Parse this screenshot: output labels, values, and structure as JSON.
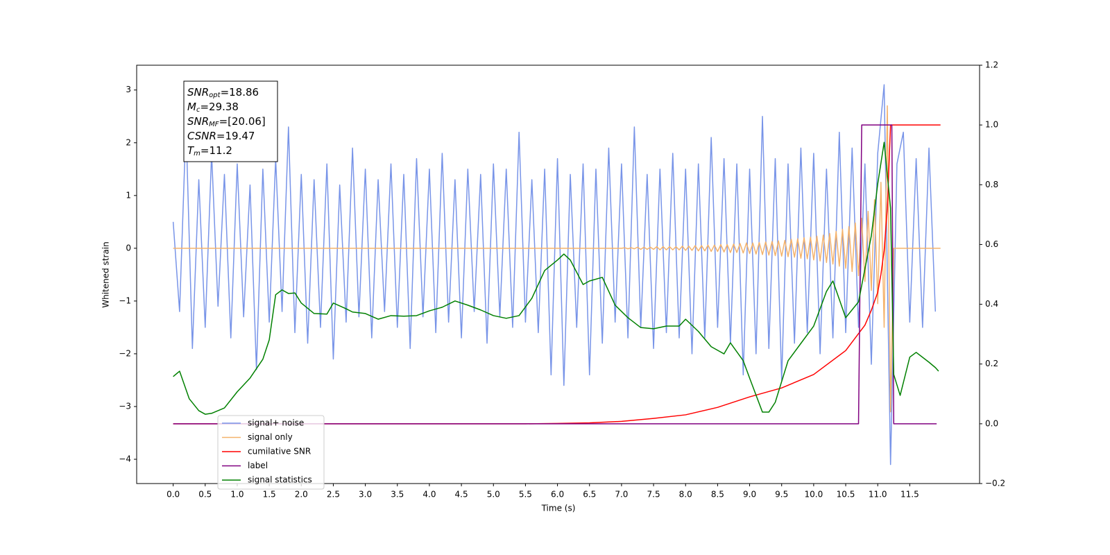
{
  "chart_data": {
    "type": "line",
    "xlabel": "Time (s)",
    "ylabel": "Whitened strain",
    "xlim": [
      -0.57,
      12.59
    ],
    "ylim": [
      -4.46,
      3.47
    ],
    "y2lim": [
      -0.2,
      1.2
    ],
    "xticks": [
      {
        "value": 0,
        "label": "0.0"
      },
      0.5,
      {
        "value": 1,
        "label": "1.0"
      },
      1.5,
      {
        "value": 2,
        "label": "2.0"
      },
      2.5,
      {
        "value": 3,
        "label": "3.0"
      },
      3.5,
      {
        "value": 4,
        "label": "4.0"
      },
      4.5,
      {
        "value": 5,
        "label": "5.0"
      },
      5.5,
      {
        "value": 6,
        "label": "6.0"
      },
      6.5,
      {
        "value": 7,
        "label": "7.0"
      },
      7.5,
      {
        "value": 8,
        "label": "8.0"
      },
      8.5,
      {
        "value": 9,
        "label": "9.0"
      },
      9.5,
      {
        "value": 10,
        "label": "10.0"
      },
      10.5,
      {
        "value": 11,
        "label": "11.0"
      },
      11.5
    ],
    "yticks": [
      {
        "value": -4,
        "label": "−4"
      },
      {
        "value": -3,
        "label": "−3"
      },
      {
        "value": -2,
        "label": "−2"
      },
      {
        "value": -1,
        "label": "−1"
      },
      0,
      1,
      2,
      3
    ],
    "y2ticks": [
      {
        "value": -0.2,
        "label": "−0.2"
      },
      {
        "value": 0,
        "label": "0.0"
      },
      0.2,
      0.4,
      0.6,
      0.8,
      {
        "value": 1,
        "label": "1.0"
      },
      1.2
    ],
    "annotations": [
      {
        "symbol": "SNR",
        "subscript": "opt",
        "text": "=18.86"
      },
      {
        "symbol": "M",
        "subscript": "c",
        "text": "=29.38"
      },
      {
        "symbol": "SNR",
        "subscript": "MF",
        "text": "=[20.06]"
      },
      {
        "symbol": "CSNR",
        "text": "=19.47"
      },
      {
        "symbol": "T",
        "subscript": "m",
        "text": "=11.2"
      }
    ],
    "series": [
      {
        "name": "signal+ noise",
        "color": "#7894e8",
        "x": [
          0,
          0.1,
          0.2,
          0.3,
          0.4,
          0.5,
          0.6,
          0.7,
          0.8,
          0.9,
          1,
          1.1,
          1.2,
          1.3,
          1.4,
          1.5,
          1.6,
          1.7,
          1.8,
          1.9,
          2,
          2.1,
          2.2,
          2.3,
          2.4,
          2.5,
          2.6,
          2.7,
          2.8,
          2.9,
          3,
          3.1,
          3.2,
          3.3,
          3.4,
          3.5,
          3.6,
          3.7,
          3.8,
          3.9,
          4,
          4.1,
          4.2,
          4.3,
          4.4,
          4.5,
          4.6,
          4.7,
          4.8,
          4.9,
          5,
          5.1,
          5.2,
          5.3,
          5.4,
          5.5,
          5.6,
          5.7,
          5.8,
          5.9,
          6,
          6.1,
          6.2,
          6.3,
          6.4,
          6.5,
          6.6,
          6.7,
          6.8,
          6.9,
          7,
          7.1,
          7.2,
          7.3,
          7.4,
          7.5,
          7.6,
          7.7,
          7.8,
          7.9,
          8,
          8.1,
          8.2,
          8.3,
          8.4,
          8.5,
          8.6,
          8.7,
          8.8,
          8.9,
          9,
          9.1,
          9.2,
          9.3,
          9.4,
          9.5,
          9.6,
          9.7,
          9.8,
          9.9,
          10,
          10.1,
          10.2,
          10.3,
          10.4,
          10.5,
          10.6,
          10.7,
          10.8,
          10.9,
          11,
          11.1,
          11.2,
          11.3,
          11.4,
          11.5,
          11.6,
          11.7,
          11.8,
          11.9
        ],
        "values": [
          0.5,
          -1.2,
          2.35,
          -1.9,
          1.3,
          -1.5,
          1.8,
          -1.1,
          1.4,
          -1.7,
          1.6,
          -1.3,
          1.2,
          -2.3,
          1.5,
          -1.4,
          1.7,
          -1.2,
          2.3,
          -1.6,
          1.4,
          -1.8,
          1.3,
          -1.5,
          1.6,
          -2.1,
          1.2,
          -1.4,
          1.9,
          -1.3,
          1.5,
          -1.7,
          1.3,
          -1.2,
          1.6,
          -1.5,
          1.4,
          -1.9,
          1.7,
          -1.3,
          1.5,
          -1.6,
          1.8,
          -1.4,
          1.3,
          -1.7,
          1.5,
          -1.2,
          1.4,
          -1.8,
          1.6,
          -1.3,
          1.5,
          -1.5,
          2.2,
          -1.4,
          1.3,
          -1.6,
          1.5,
          -2.4,
          1.7,
          -2.6,
          1.4,
          -1.5,
          1.6,
          -2.4,
          1.5,
          -1.8,
          1.9,
          -1.4,
          1.6,
          -1.7,
          2.3,
          -1.5,
          1.4,
          -1.9,
          1.5,
          -1.6,
          1.8,
          -1.7,
          1.5,
          -2.0,
          1.6,
          -1.7,
          2.1,
          -1.5,
          1.7,
          -1.8,
          1.6,
          -2.4,
          1.5,
          -2.0,
          2.5,
          -1.9,
          1.7,
          -2.5,
          1.6,
          -1.8,
          1.9,
          -1.6,
          1.8,
          -2.0,
          1.5,
          -1.7,
          2.2,
          -1.6,
          1.9,
          -1.5,
          1.6,
          -2.2,
          1.8,
          3.1,
          -4.1,
          1.6,
          2.2,
          -1.4,
          1.7,
          -1.5,
          1.9,
          -1.2
        ]
      },
      {
        "name": "signal only",
        "color": "#f4b26b",
        "x": [
          0,
          7,
          7.05,
          7.1,
          7.15,
          7.2,
          7.25,
          7.3,
          7.35,
          7.4,
          7.45,
          7.5,
          7.55,
          7.6,
          7.65,
          7.7,
          7.75,
          7.8,
          7.85,
          7.9,
          7.95,
          8,
          8.05,
          8.1,
          8.15,
          8.2,
          8.25,
          8.3,
          8.35,
          8.4,
          8.45,
          8.5,
          8.55,
          8.6,
          8.65,
          8.7,
          8.75,
          8.8,
          8.85,
          8.9,
          8.95,
          9,
          9.05,
          9.1,
          9.15,
          9.2,
          9.25,
          9.3,
          9.35,
          9.4,
          9.45,
          9.5,
          9.55,
          9.6,
          9.65,
          9.7,
          9.75,
          9.8,
          9.85,
          9.9,
          9.95,
          10,
          10.05,
          10.1,
          10.15,
          10.2,
          10.25,
          10.3,
          10.35,
          10.4,
          10.45,
          10.5,
          10.55,
          10.6,
          10.65,
          10.7,
          10.75,
          10.8,
          10.85,
          10.9,
          10.95,
          11,
          11.05,
          11.1,
          11.15,
          11.2,
          11.25,
          11.98
        ],
        "values": [
          0,
          0,
          0.01,
          -0.01,
          0.01,
          -0.01,
          0.02,
          -0.02,
          0.02,
          -0.02,
          0.02,
          -0.02,
          0.03,
          -0.03,
          0.03,
          -0.03,
          0.03,
          -0.03,
          0.03,
          -0.03,
          0.04,
          -0.04,
          0.04,
          -0.04,
          0.05,
          -0.05,
          0.05,
          -0.05,
          0.06,
          -0.06,
          0.06,
          -0.06,
          0.07,
          -0.07,
          0.07,
          -0.08,
          0.08,
          -0.08,
          0.09,
          -0.09,
          0.1,
          -0.1,
          0.1,
          -0.11,
          0.11,
          -0.12,
          0.12,
          -0.13,
          0.13,
          -0.14,
          0.14,
          -0.15,
          0.15,
          -0.16,
          0.17,
          -0.17,
          0.18,
          -0.19,
          0.2,
          -0.2,
          0.21,
          -0.22,
          0.23,
          -0.24,
          0.25,
          -0.27,
          0.28,
          -0.3,
          0.32,
          -0.34,
          0.36,
          -0.38,
          0.41,
          -0.44,
          0.48,
          -0.52,
          0.57,
          -0.63,
          0.7,
          -0.8,
          0.92,
          -1.05,
          1.25,
          -1.5,
          2.7,
          -3.1,
          0,
          0
        ]
      },
      {
        "name": "cumilative SNR",
        "color": "#ff0000",
        "axis": "y2",
        "x": [
          0,
          5.5,
          6,
          6.5,
          7,
          7.5,
          8,
          8.5,
          9,
          9.5,
          10,
          10.5,
          10.8,
          10.9,
          11,
          11.05,
          11.1,
          11.15,
          11.2,
          11.98
        ],
        "values": [
          0,
          0,
          0.001,
          0.003,
          0.008,
          0.018,
          0.03,
          0.055,
          0.09,
          0.12,
          0.165,
          0.245,
          0.33,
          0.38,
          0.44,
          0.5,
          0.58,
          0.72,
          1,
          1
        ]
      },
      {
        "name": "label",
        "color": "#800080",
        "axis": "y2",
        "x": [
          0,
          10.7,
          10.75,
          11.22,
          11.25,
          11.92
        ],
        "values": [
          0,
          0,
          1,
          1,
          0,
          0
        ]
      },
      {
        "name": "signal statistics",
        "color": "#008000",
        "axis": "y2",
        "x": [
          0,
          0.1,
          0.25,
          0.4,
          0.5,
          0.6,
          0.8,
          1,
          1.2,
          1.4,
          1.5,
          1.6,
          1.7,
          1.8,
          1.9,
          2,
          2.2,
          2.4,
          2.5,
          2.7,
          2.8,
          3,
          3.2,
          3.4,
          3.6,
          3.8,
          4,
          4.2,
          4.4,
          4.6,
          4.8,
          5,
          5.2,
          5.4,
          5.6,
          5.8,
          6,
          6.1,
          6.2,
          6.4,
          6.5,
          6.7,
          6.9,
          7.1,
          7.3,
          7.5,
          7.7,
          7.9,
          8,
          8.2,
          8.4,
          8.6,
          8.7,
          8.9,
          9,
          9.2,
          9.3,
          9.4,
          9.6,
          9.8,
          10,
          10.2,
          10.3,
          10.5,
          10.7,
          10.9,
          11,
          11.1,
          11.2,
          11.25,
          11.35,
          11.5,
          11.6,
          11.8,
          11.9,
          11.95
        ],
        "values": [
          0.158,
          0.176,
          0.084,
          0.044,
          0.032,
          0.035,
          0.053,
          0.107,
          0.153,
          0.216,
          0.281,
          0.432,
          0.448,
          0.436,
          0.438,
          0.404,
          0.369,
          0.367,
          0.404,
          0.385,
          0.374,
          0.369,
          0.35,
          0.362,
          0.36,
          0.362,
          0.378,
          0.39,
          0.411,
          0.397,
          0.381,
          0.362,
          0.353,
          0.362,
          0.42,
          0.513,
          0.548,
          0.568,
          0.548,
          0.466,
          0.478,
          0.49,
          0.397,
          0.355,
          0.322,
          0.318,
          0.327,
          0.327,
          0.35,
          0.309,
          0.258,
          0.234,
          0.271,
          0.211,
          0.153,
          0.039,
          0.039,
          0.072,
          0.211,
          0.269,
          0.327,
          0.443,
          0.478,
          0.355,
          0.408,
          0.629,
          0.803,
          0.942,
          0.722,
          0.165,
          0.095,
          0.223,
          0.239,
          0.206,
          0.188,
          0.176
        ]
      }
    ]
  }
}
